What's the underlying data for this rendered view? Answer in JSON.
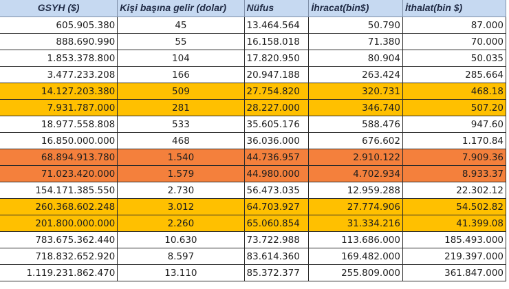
{
  "table": {
    "headers": {
      "gsyh": "GSYH ($)",
      "kisi": "Kişi başına gelir (dolar)",
      "nufus": "Nüfus",
      "ihracat": "İhracat(bin$)",
      "ithalat": "İthalat(bin $)"
    },
    "colors": {
      "header_bg": "#c6d9f1",
      "yellow": "#ffc000",
      "orange": "#f4803c",
      "white": "#ffffff"
    },
    "rows": [
      {
        "highlight": "white",
        "gsyh": "605.905.380",
        "kisi": "45",
        "nufus": "13.464.564",
        "ihracat": "50.790",
        "ithalat": "87.000"
      },
      {
        "highlight": "white",
        "gsyh": "888.690.990",
        "kisi": "55",
        "nufus": "16.158.018",
        "ihracat": "71.380",
        "ithalat": "70.000"
      },
      {
        "highlight": "white",
        "gsyh": "1.853.378.800",
        "kisi": "104",
        "nufus": "17.820.950",
        "ihracat": "80.904",
        "ithalat": "50.035"
      },
      {
        "highlight": "white",
        "gsyh": "3.477.233.208",
        "kisi": "166",
        "nufus": "20.947.188",
        "ihracat": "263.424",
        "ithalat": "285.664"
      },
      {
        "highlight": "yellow",
        "gsyh": "14.127.203.380",
        "kisi": "509",
        "nufus": "27.754.820",
        "ihracat": "320.731",
        "ithalat": "468.18"
      },
      {
        "highlight": "yellow",
        "gsyh": "7.931.787.000",
        "kisi": "281",
        "nufus": "28.227.000",
        "ihracat": "346.740",
        "ithalat": "507.20"
      },
      {
        "highlight": "white",
        "gsyh": "18.977.558.808",
        "kisi": "533",
        "nufus": "35.605.176",
        "ihracat": "588.476",
        "ithalat": "947.60"
      },
      {
        "highlight": "white",
        "gsyh": "16.850.000.000",
        "kisi": "468",
        "nufus": "36.036.000",
        "ihracat": "676.602",
        "ithalat": "1.170.84"
      },
      {
        "highlight": "orange",
        "gsyh": "68.894.913.780",
        "kisi": "1.540",
        "nufus": "44.736.957",
        "ihracat": "2.910.122",
        "ithalat": "7.909.36"
      },
      {
        "highlight": "orange",
        "gsyh": "71.023.420.000",
        "kisi": "1.579",
        "nufus": "44.980.000",
        "ihracat": "4.702.934",
        "ithalat": "8.933.37"
      },
      {
        "highlight": "white",
        "gsyh": "154.171.385.550",
        "kisi": "2.730",
        "nufus": "56.473.035",
        "ihracat": "12.959.288",
        "ithalat": "22.302.12"
      },
      {
        "highlight": "yellow",
        "gsyh": "260.368.602.248",
        "kisi": "3.012",
        "nufus": "64.703.927",
        "ihracat": "27.774.906",
        "ithalat": "54.502.82"
      },
      {
        "highlight": "yellow",
        "gsyh": "201.800.000.000",
        "kisi": "2.260",
        "nufus": "65.060.854",
        "ihracat": "31.334.216",
        "ithalat": "41.399.08"
      },
      {
        "highlight": "white",
        "gsyh": "783.675.362.440",
        "kisi": "10.630",
        "nufus": "73.722.988",
        "ihracat": "113.686.000",
        "ithalat": "185.493.000"
      },
      {
        "highlight": "white",
        "gsyh": "718.832.652.920",
        "kisi": "8.597",
        "nufus": "83.614.360",
        "ihracat": "169.482.000",
        "ithalat": "219.397.000"
      },
      {
        "highlight": "white",
        "gsyh": "1.119.231.862.470",
        "kisi": "13.110",
        "nufus": "85.372.377",
        "ihracat": "255.809.000",
        "ithalat": "361.847.000"
      }
    ]
  }
}
